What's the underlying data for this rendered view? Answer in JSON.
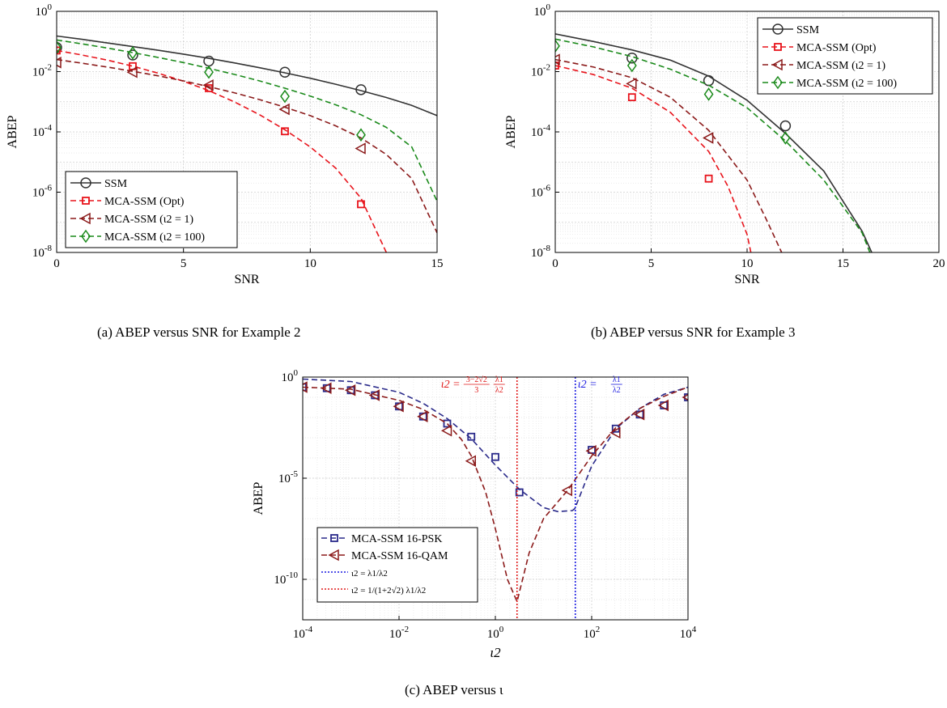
{
  "captions": {
    "a": "(a) ABEP versus SNR for Example 2",
    "b": "(b) ABEP versus SNR for Example 3",
    "c": "(c) ABEP versus ι"
  },
  "chart_data": [
    {
      "id": "a",
      "type": "line",
      "xlabel": "SNR",
      "ylabel": "ABEP",
      "xlim": [
        0,
        15
      ],
      "ylim_exp": [
        -8,
        0
      ],
      "yscale": "log",
      "grid": true,
      "legend_position": "bottom-left",
      "xticks": [
        "0",
        "5",
        "10",
        "15"
      ],
      "series": [
        {
          "name": "SSM",
          "color": "#333333",
          "marker": "circle",
          "style": "solid",
          "x": [
            0,
            1,
            2,
            3,
            4,
            5,
            6,
            7,
            8,
            9,
            10,
            11,
            12,
            13,
            14,
            15
          ],
          "log10y": [
            -0.82,
            -0.93,
            -1.05,
            -1.17,
            -1.29,
            -1.42,
            -1.56,
            -1.71,
            -1.87,
            -2.04,
            -2.22,
            -2.42,
            -2.63,
            -2.86,
            -3.12,
            -3.46
          ],
          "marker_x": [
            0,
            3,
            6,
            9,
            12
          ],
          "marker_log10y": [
            -1.2,
            -1.45,
            -1.65,
            -2.02,
            -2.6
          ]
        },
        {
          "name": "MCA-SSM (Opt)",
          "color": "#e8141c",
          "marker": "square",
          "style": "dashed",
          "x": [
            0,
            1,
            2,
            3,
            4,
            5,
            6,
            7,
            8,
            9,
            10,
            11,
            12,
            13
          ],
          "log10y": [
            -1.3,
            -1.45,
            -1.62,
            -1.82,
            -2.05,
            -2.32,
            -2.63,
            -3.0,
            -3.43,
            -3.93,
            -4.5,
            -5.2,
            -6.2,
            -8.0
          ],
          "marker_x": [
            0,
            3,
            6,
            9,
            12
          ],
          "marker_log10y": [
            -1.3,
            -1.82,
            -2.55,
            -3.98,
            -6.4
          ]
        },
        {
          "name": "MCA-SSM (ι2 = 1)",
          "color": "#8b1a1a",
          "marker": "triangle-left",
          "style": "dashed",
          "x": [
            0,
            1,
            2,
            3,
            4,
            5,
            6,
            7,
            8,
            9,
            10,
            11,
            12,
            13,
            14,
            15
          ],
          "log10y": [
            -1.6,
            -1.72,
            -1.85,
            -1.99,
            -2.14,
            -2.31,
            -2.5,
            -2.7,
            -2.93,
            -3.18,
            -3.46,
            -3.8,
            -4.2,
            -4.75,
            -5.55,
            -7.35
          ],
          "marker_x": [
            0,
            3,
            6,
            9,
            12
          ],
          "marker_log10y": [
            -1.7,
            -2.02,
            -2.45,
            -3.25,
            -4.55
          ]
        },
        {
          "name": "MCA-SSM (ι2 = 100)",
          "color": "#1a8a1a",
          "marker": "diamond",
          "style": "dashed",
          "x": [
            0,
            1,
            2,
            3,
            4,
            5,
            6,
            7,
            8,
            9,
            10,
            11,
            12,
            13,
            14,
            15
          ],
          "log10y": [
            -0.95,
            -1.08,
            -1.22,
            -1.37,
            -1.53,
            -1.7,
            -1.89,
            -2.09,
            -2.31,
            -2.55,
            -2.81,
            -3.1,
            -3.43,
            -3.85,
            -4.5,
            -6.3
          ],
          "marker_x": [
            0,
            3,
            6,
            9,
            12
          ],
          "marker_log10y": [
            -1.2,
            -1.38,
            -2.02,
            -2.82,
            -4.1
          ]
        }
      ]
    },
    {
      "id": "b",
      "type": "line",
      "xlabel": "SNR",
      "ylabel": "ABEP",
      "xlim": [
        0,
        20
      ],
      "ylim_exp": [
        -8,
        0
      ],
      "yscale": "log",
      "grid": true,
      "legend_position": "top-right",
      "xticks": [
        "0",
        "5",
        "10",
        "15",
        "20"
      ],
      "series": [
        {
          "name": "SSM",
          "color": "#333333",
          "marker": "circle",
          "style": "solid",
          "x": [
            0,
            2,
            4,
            6,
            8,
            10,
            12,
            14,
            16,
            16.5
          ],
          "log10y": [
            -0.75,
            -1.0,
            -1.28,
            -1.62,
            -2.15,
            -2.95,
            -4.05,
            -5.3,
            -7.3,
            -8.0
          ],
          "marker_x": [
            4,
            8,
            12
          ],
          "marker_log10y": [
            -1.55,
            -2.3,
            -3.8
          ]
        },
        {
          "name": "MCA-SSM (Opt)",
          "color": "#e8141c",
          "marker": "square",
          "style": "dashed",
          "x": [
            0,
            2,
            4,
            6,
            8,
            9,
            10,
            10.2
          ],
          "log10y": [
            -1.8,
            -2.1,
            -2.55,
            -3.35,
            -4.65,
            -5.8,
            -7.4,
            -8.0
          ],
          "marker_x": [
            0,
            4,
            8
          ],
          "marker_log10y": [
            -1.8,
            -2.85,
            -5.55
          ]
        },
        {
          "name": "MCA-SSM (ι2 = 1)",
          "color": "#8b1a1a",
          "marker": "triangle-left",
          "style": "dashed",
          "x": [
            0,
            2,
            4,
            6,
            8,
            10,
            11,
            11.8
          ],
          "log10y": [
            -1.6,
            -1.85,
            -2.2,
            -2.85,
            -3.95,
            -5.6,
            -6.9,
            -8.0
          ],
          "marker_x": [
            0,
            4,
            8
          ],
          "marker_log10y": [
            -1.6,
            -2.4,
            -4.2
          ]
        },
        {
          "name": "MCA-SSM (ι2 = 100)",
          "color": "#1a8a1a",
          "marker": "diamond",
          "style": "dashed",
          "x": [
            0,
            2,
            4,
            6,
            8,
            10,
            12,
            14,
            16,
            16.4
          ],
          "log10y": [
            -0.92,
            -1.18,
            -1.5,
            -1.92,
            -2.45,
            -3.2,
            -4.3,
            -5.6,
            -7.35,
            -8.0
          ],
          "marker_x": [
            0,
            4,
            8,
            12
          ],
          "marker_log10y": [
            -1.15,
            -1.8,
            -2.75,
            -4.2
          ]
        }
      ]
    },
    {
      "id": "c",
      "type": "line",
      "xlabel": "ι2",
      "ylabel": "ABEP",
      "xscale": "log",
      "yscale": "log",
      "xlim_exp": [
        -4,
        4
      ],
      "ylim_exp": [
        -12,
        0
      ],
      "grid": true,
      "legend_position": "bottom-left",
      "series": [
        {
          "name": "MCA-SSM 16-PSK",
          "color": "#2a2a8a",
          "marker": "square",
          "style": "dashed",
          "log10x": [
            -4,
            -3,
            -2,
            -1.5,
            -1,
            -0.5,
            0,
            0.5,
            1,
            1.3,
            1.6,
            1.65,
            2,
            2.5,
            3,
            3.5,
            4
          ],
          "log10y": [
            -0.1,
            -0.22,
            -0.75,
            -1.3,
            -2.05,
            -3.05,
            -4.35,
            -5.55,
            -6.45,
            -6.65,
            -6.6,
            -6.5,
            -4.4,
            -2.55,
            -1.55,
            -0.85,
            -0.5
          ],
          "marker_log10x": [
            -4,
            -3.5,
            -3,
            -2.5,
            -2,
            -1.5,
            -1,
            -0.5,
            0,
            0.5,
            2,
            2.5,
            3,
            3.5,
            4
          ],
          "marker_log10y": [
            -0.5,
            -0.55,
            -0.65,
            -0.9,
            -1.45,
            -1.95,
            -2.3,
            -2.95,
            -3.95,
            -5.7,
            -3.6,
            -2.55,
            -1.85,
            -1.4,
            -1.0
          ]
        },
        {
          "name": "MCA-SSM 16-QAM",
          "color": "#8b1a1a",
          "marker": "triangle-left",
          "style": "dashed",
          "log10x": [
            -4,
            -3,
            -2,
            -1.5,
            -1,
            -0.7,
            -0.5,
            -0.2,
            0,
            0.25,
            0.45,
            0.7,
            1,
            1.5,
            2,
            2.5,
            3,
            3.5,
            4
          ],
          "log10y": [
            -0.5,
            -0.6,
            -1.15,
            -1.6,
            -2.3,
            -3.1,
            -3.9,
            -5.7,
            -7.5,
            -10.0,
            -11.1,
            -8.7,
            -7.0,
            -5.6,
            -3.9,
            -2.5,
            -1.55,
            -0.95,
            -0.5
          ],
          "marker_log10x": [
            -4,
            -3.5,
            -3,
            -2.5,
            -2,
            -1.5,
            -1,
            -0.5,
            1.5,
            2,
            2.5,
            3,
            3.5,
            4
          ],
          "marker_log10y": [
            -0.5,
            -0.55,
            -0.65,
            -0.9,
            -1.45,
            -1.95,
            -2.65,
            -4.15,
            -5.6,
            -3.65,
            -2.75,
            -1.85,
            -1.4,
            -1.0
          ]
        },
        {
          "name": "ι2 = λ1/λ2",
          "color": "#1a1ae0",
          "style": "dotted",
          "vline_log10x": 1.66
        },
        {
          "name": "ι2 = 1/(1+2√2) λ1/λ2",
          "color": "#e01a1a",
          "style": "dotted",
          "vline_log10x": 0.45
        }
      ],
      "annotations": {
        "red_prefix": "ι2 = ",
        "red_num": "3−2√2",
        "red_den": "3",
        "red_l1": "λ1",
        "red_l2": "λ2",
        "blue_prefix": "ι2 = ",
        "blue_l1": "λ1",
        "blue_l2": "λ2"
      }
    }
  ]
}
